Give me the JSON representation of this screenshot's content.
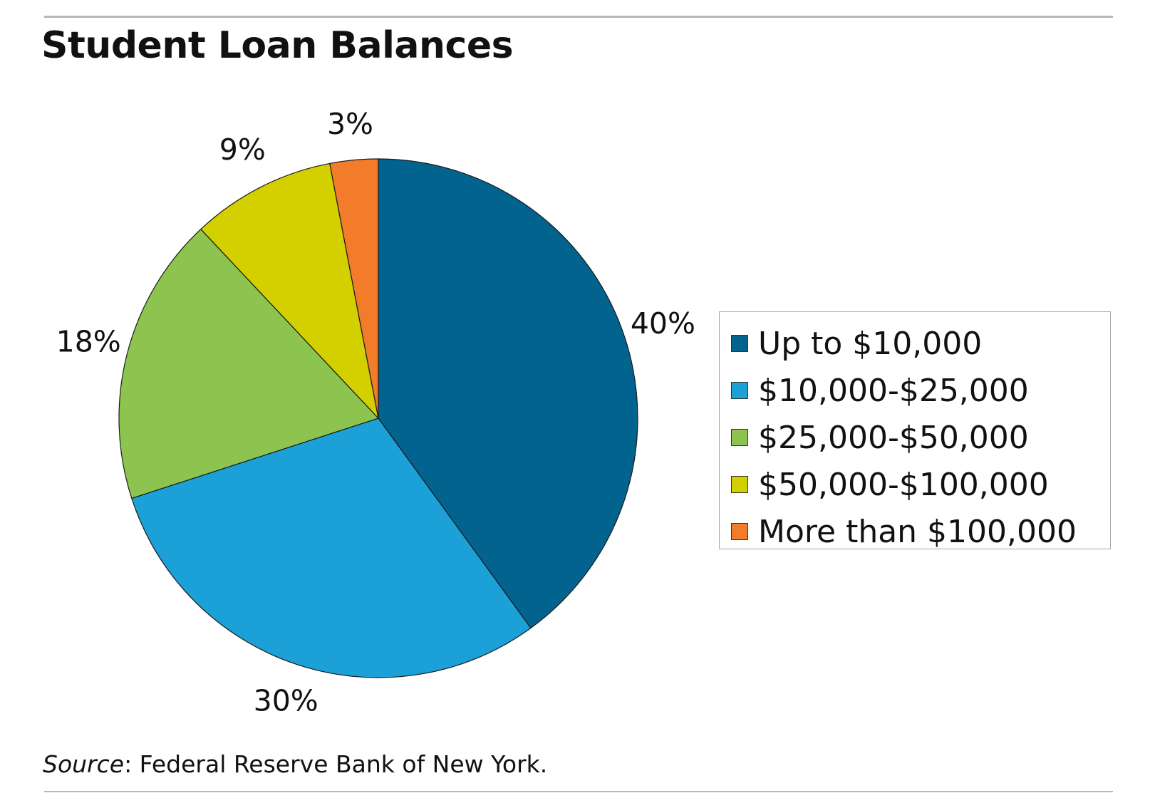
{
  "chart_data": {
    "type": "pie",
    "title": "Student Loan Balances",
    "categories": [
      "Up to $10,000",
      "$10,000-$25,000",
      "$25,000-$50,000",
      "$50,000-$100,000",
      "More than $100,000"
    ],
    "values": [
      40,
      30,
      18,
      9,
      3
    ],
    "value_labels": [
      "40%",
      "30%",
      "18%",
      "9%",
      "3%"
    ],
    "colors": [
      "#03638f",
      "#1ba0d7",
      "#8dc44f",
      "#d4d000",
      "#f37c2b"
    ],
    "start_angle": "12 o'clock",
    "direction": "clockwise",
    "legend_position": "right"
  },
  "source": {
    "label": "Source",
    "text": ": Federal Reserve Bank of New York."
  }
}
